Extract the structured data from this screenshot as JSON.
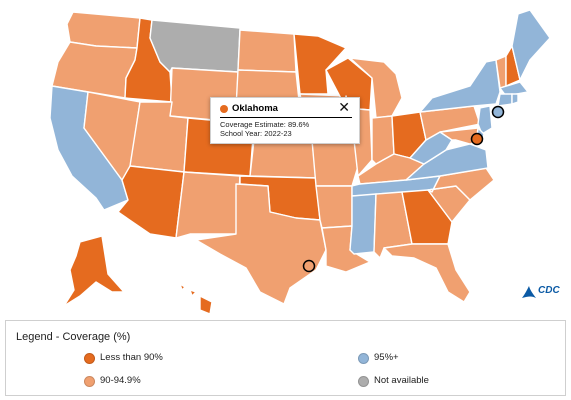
{
  "colors": {
    "less_than_90": "#e56b1f",
    "range_90_94_9": "#f0a070",
    "above_95": "#92b5d8",
    "not_available": "#adadad",
    "cdc_blue": "#0b5aa5"
  },
  "states": {
    "WA": "range_90_94_9",
    "OR": "range_90_94_9",
    "CA": "above_95",
    "NV": "range_90_94_9",
    "ID": "less_than_90",
    "MT": "not_available",
    "WY": "range_90_94_9",
    "UT": "range_90_94_9",
    "AZ": "less_than_90",
    "CO": "less_than_90",
    "NM": "range_90_94_9",
    "ND": "range_90_94_9",
    "SD": "range_90_94_9",
    "NE": "range_90_94_9",
    "KS": "range_90_94_9",
    "OK": "less_than_90",
    "TX": "range_90_94_9",
    "MN": "less_than_90",
    "IA": "range_90_94_9",
    "MO": "range_90_94_9",
    "AR": "range_90_94_9",
    "LA": "range_90_94_9",
    "WI": "less_than_90",
    "IL": "range_90_94_9",
    "MI": "range_90_94_9",
    "IN": "range_90_94_9",
    "OH": "less_than_90",
    "KY": "range_90_94_9",
    "TN": "above_95",
    "MS": "above_95",
    "AL": "range_90_94_9",
    "GA": "less_than_90",
    "FL": "range_90_94_9",
    "SC": "range_90_94_9",
    "NC": "range_90_94_9",
    "VA": "above_95",
    "WV": "above_95",
    "PA": "range_90_94_9",
    "NY": "above_95",
    "VT": "range_90_94_9",
    "NH": "less_than_90",
    "ME": "above_95",
    "MA": "above_95",
    "CT": "above_95",
    "RI": "above_95",
    "NJ": "above_95",
    "DE": "above_95",
    "MD": "range_90_94_9",
    "AK": "less_than_90",
    "HI": "less_than_90"
  },
  "markers": [
    {
      "name": "houston-marker",
      "category": "range_90_94_9"
    },
    {
      "name": "new-york-city-marker",
      "category": "above_95"
    },
    {
      "name": "philadelphia-marker",
      "category": "less_than_90"
    }
  ],
  "tooltip": {
    "state": "Oklahoma",
    "category": "less_than_90",
    "coverage": "Coverage Estimate: 89.6%",
    "year": "School Year: 2022-23",
    "close_glyph": "✕"
  },
  "logo": {
    "text": "CDC"
  },
  "legend": {
    "title": "Legend - Coverage (%)",
    "items": [
      {
        "label": "Less than 90%",
        "category": "less_than_90"
      },
      {
        "label": "95%+",
        "category": "above_95"
      },
      {
        "label": "90-94.9%",
        "category": "range_90_94_9"
      },
      {
        "label": "Not available",
        "category": "not_available"
      }
    ]
  }
}
